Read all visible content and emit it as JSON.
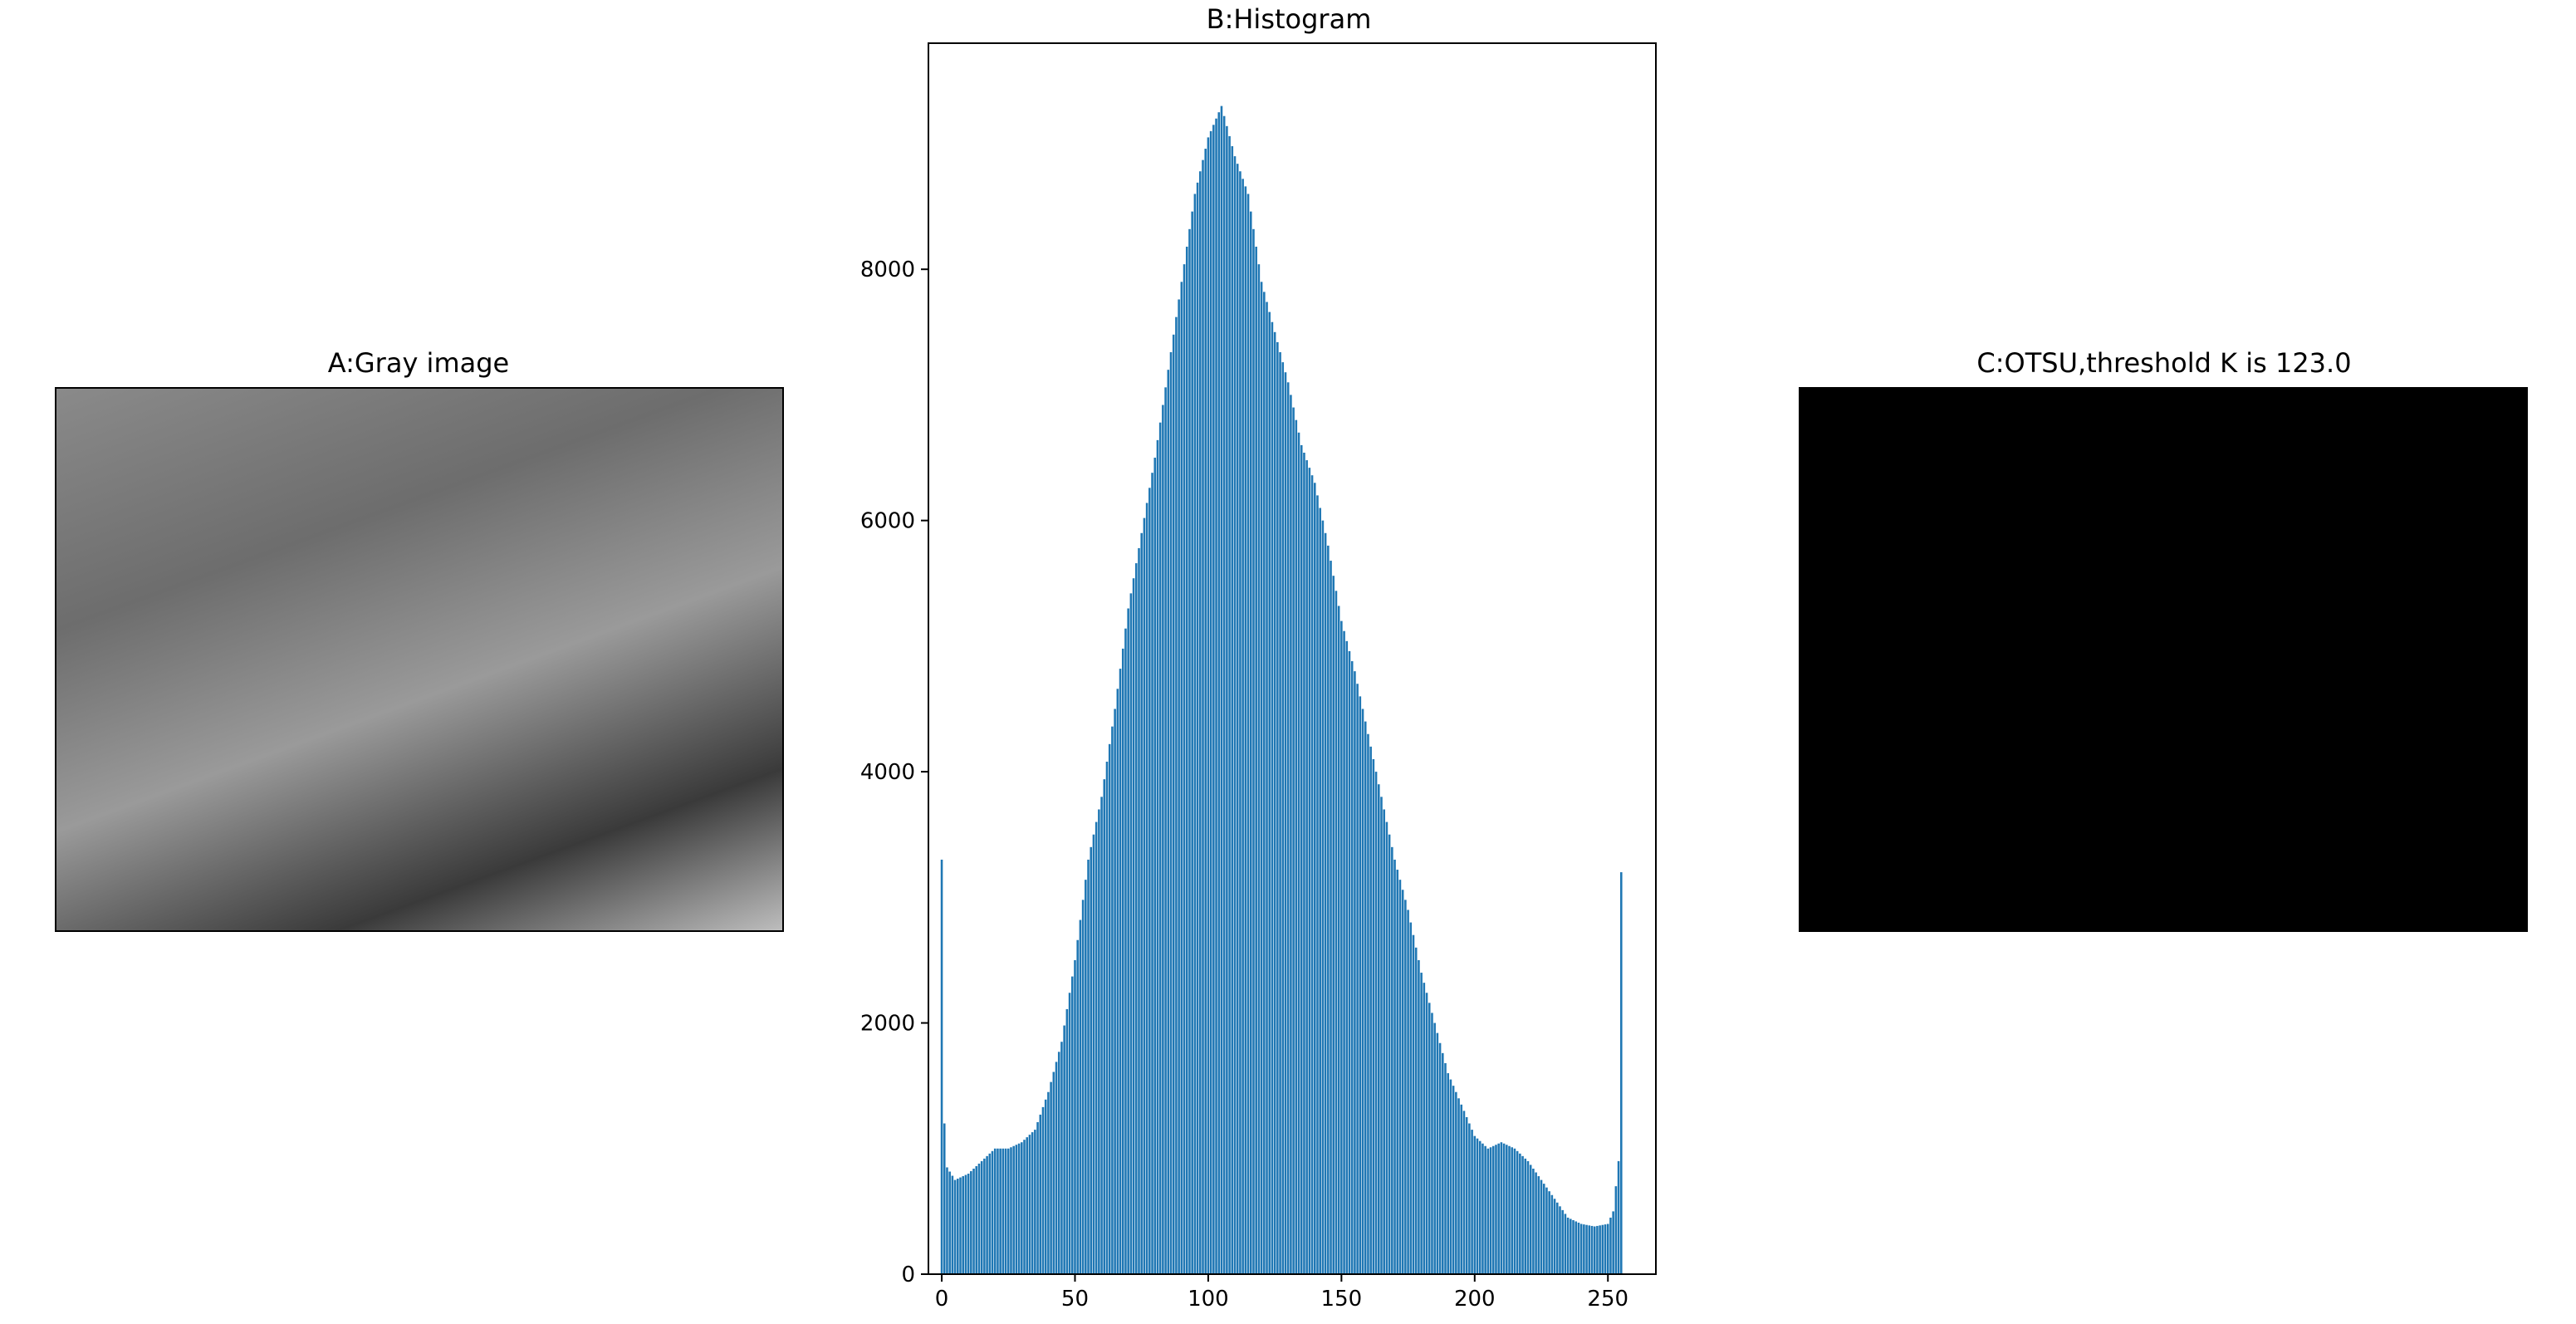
{
  "figure": {
    "panels": [
      {
        "id": "A",
        "title": "A:Gray image"
      },
      {
        "id": "B",
        "title": "B:Histogram"
      },
      {
        "id": "C",
        "title": "C:OTSU,threshold K is 123.0"
      }
    ]
  },
  "chart_data": {
    "type": "bar",
    "title": "B:Histogram",
    "xlabel": "",
    "ylabel": "",
    "xlim": [
      -5,
      268
    ],
    "ylim": [
      0,
      9800
    ],
    "xticks": [
      0,
      50,
      100,
      150,
      200,
      250
    ],
    "yticks": [
      0,
      2000,
      4000,
      6000,
      8000
    ],
    "bar_color": "#1f77b4",
    "anchors": [
      [
        0,
        3300
      ],
      [
        1,
        1200
      ],
      [
        2,
        850
      ],
      [
        5,
        750
      ],
      [
        10,
        800
      ],
      [
        15,
        900
      ],
      [
        20,
        1000
      ],
      [
        25,
        1000
      ],
      [
        30,
        1050
      ],
      [
        35,
        1150
      ],
      [
        40,
        1450
      ],
      [
        45,
        1850
      ],
      [
        50,
        2500
      ],
      [
        55,
        3300
      ],
      [
        60,
        3800
      ],
      [
        65,
        4500
      ],
      [
        70,
        5300
      ],
      [
        75,
        5900
      ],
      [
        80,
        6500
      ],
      [
        85,
        7200
      ],
      [
        90,
        7900
      ],
      [
        95,
        8600
      ],
      [
        100,
        9050
      ],
      [
        105,
        9300
      ],
      [
        110,
        8900
      ],
      [
        115,
        8600
      ],
      [
        120,
        7900
      ],
      [
        125,
        7500
      ],
      [
        130,
        7100
      ],
      [
        135,
        6600
      ],
      [
        140,
        6300
      ],
      [
        145,
        5800
      ],
      [
        150,
        5200
      ],
      [
        155,
        4800
      ],
      [
        160,
        4300
      ],
      [
        165,
        3800
      ],
      [
        170,
        3300
      ],
      [
        175,
        2900
      ],
      [
        180,
        2400
      ],
      [
        185,
        2000
      ],
      [
        190,
        1600
      ],
      [
        195,
        1350
      ],
      [
        200,
        1100
      ],
      [
        205,
        1000
      ],
      [
        210,
        1050
      ],
      [
        215,
        1000
      ],
      [
        220,
        900
      ],
      [
        225,
        750
      ],
      [
        230,
        600
      ],
      [
        235,
        450
      ],
      [
        240,
        400
      ],
      [
        245,
        380
      ],
      [
        250,
        400
      ],
      [
        252,
        500
      ],
      [
        253,
        700
      ],
      [
        254,
        900
      ],
      [
        255,
        3200
      ]
    ],
    "images": [
      {
        "panel": "A",
        "kind": "grayscale photograph (waterfall canyon)"
      },
      {
        "panel": "C",
        "kind": "binary threshold result",
        "threshold": 123.0
      }
    ]
  }
}
